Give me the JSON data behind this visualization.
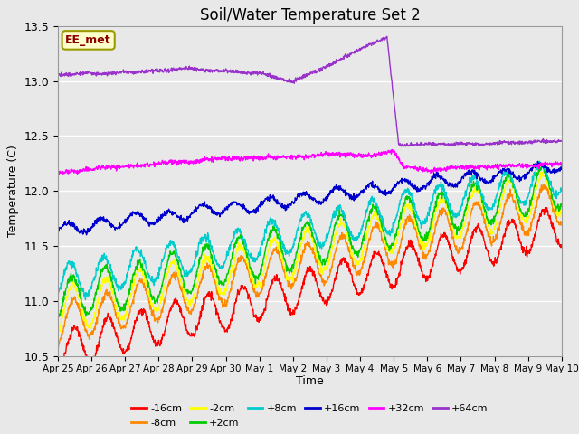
{
  "title": "Soil/Water Temperature Set 2",
  "xlabel": "Time",
  "ylabel": "Temperature (C)",
  "ylim": [
    10.5,
    13.5
  ],
  "annotation_text": "EE_met",
  "annotation_bg": "#ffffcc",
  "annotation_border": "#999900",
  "x_tick_labels": [
    "Apr 25",
    "Apr 26",
    "Apr 27",
    "Apr 28",
    "Apr 29",
    "Apr 30",
    "May 1",
    "May 2",
    "May 3",
    "May 4",
    "May 5",
    "May 6",
    "May 7",
    "May 8",
    "May 9",
    "May 10"
  ],
  "series": [
    {
      "label": "-16cm",
      "color": "#ff0000"
    },
    {
      "label": "-8cm",
      "color": "#ff8800"
    },
    {
      "label": "-2cm",
      "color": "#ffff00"
    },
    {
      "label": "+2cm",
      "color": "#00cc00"
    },
    {
      "label": "+8cm",
      "color": "#00cccc"
    },
    {
      "label": "+16cm",
      "color": "#0000cc"
    },
    {
      "label": "+32cm",
      "color": "#ff00ff"
    },
    {
      "label": "+64cm",
      "color": "#9933cc"
    }
  ],
  "grid_color": "#ffffff",
  "linewidth": 1.0,
  "n_points": 1500
}
